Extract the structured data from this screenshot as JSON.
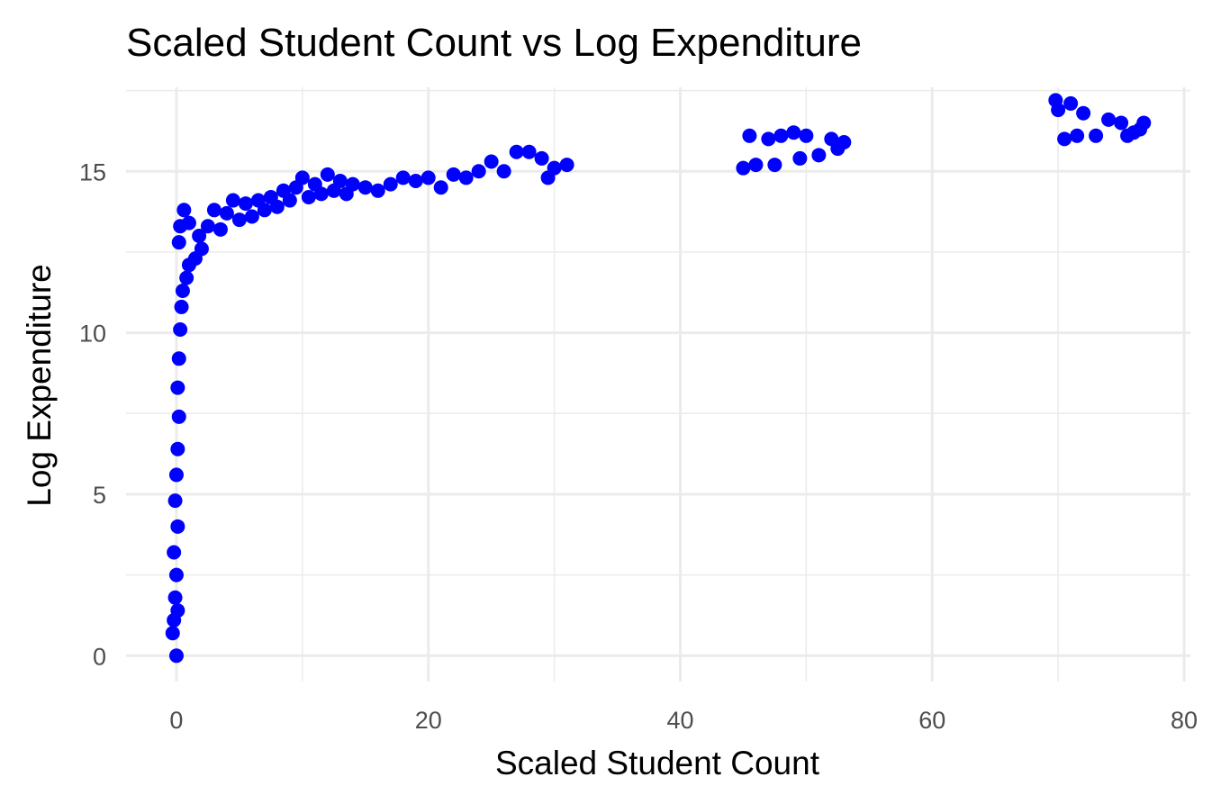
{
  "chart_data": {
    "type": "scatter",
    "title": "Scaled Student Count vs Log Expenditure",
    "xlabel": "Scaled Student Count",
    "ylabel": "Log Expenditure",
    "xlim": [
      -4,
      80.5
    ],
    "ylim": [
      -0.8,
      17.6
    ],
    "xticks": [
      0,
      20,
      40,
      60,
      80
    ],
    "yticks": [
      0,
      5,
      10,
      15
    ],
    "grid": true,
    "point_color": "#0000ff",
    "series": [
      {
        "points": [
          [
            0.0,
            0.0
          ],
          [
            -0.3,
            0.7
          ],
          [
            -0.2,
            1.1
          ],
          [
            0.1,
            1.4
          ],
          [
            -0.1,
            1.8
          ],
          [
            0.0,
            2.5
          ],
          [
            -0.2,
            3.2
          ],
          [
            0.1,
            4.0
          ],
          [
            -0.1,
            4.8
          ],
          [
            0.0,
            5.6
          ],
          [
            0.1,
            6.4
          ],
          [
            0.2,
            7.4
          ],
          [
            0.1,
            8.3
          ],
          [
            0.2,
            9.2
          ],
          [
            0.3,
            10.1
          ],
          [
            0.4,
            10.8
          ],
          [
            0.5,
            11.3
          ],
          [
            0.8,
            11.7
          ],
          [
            1.0,
            12.1
          ],
          [
            1.5,
            12.3
          ],
          [
            2.0,
            12.6
          ],
          [
            0.2,
            12.8
          ],
          [
            0.3,
            13.3
          ],
          [
            0.6,
            13.8
          ],
          [
            1.0,
            13.4
          ],
          [
            1.8,
            13.0
          ],
          [
            2.5,
            13.3
          ],
          [
            3.0,
            13.8
          ],
          [
            3.5,
            13.2
          ],
          [
            4.0,
            13.7
          ],
          [
            4.5,
            14.1
          ],
          [
            5.0,
            13.5
          ],
          [
            5.5,
            14.0
          ],
          [
            6.0,
            13.6
          ],
          [
            6.5,
            14.1
          ],
          [
            7.0,
            13.8
          ],
          [
            7.5,
            14.2
          ],
          [
            8.0,
            13.9
          ],
          [
            8.5,
            14.4
          ],
          [
            9.0,
            14.1
          ],
          [
            9.5,
            14.5
          ],
          [
            10.0,
            14.8
          ],
          [
            10.5,
            14.2
          ],
          [
            11.0,
            14.6
          ],
          [
            11.5,
            14.3
          ],
          [
            12.0,
            14.9
          ],
          [
            12.5,
            14.4
          ],
          [
            13.0,
            14.7
          ],
          [
            13.5,
            14.3
          ],
          [
            14.0,
            14.6
          ],
          [
            15.0,
            14.5
          ],
          [
            16.0,
            14.4
          ],
          [
            17.0,
            14.6
          ],
          [
            18.0,
            14.8
          ],
          [
            19.0,
            14.7
          ],
          [
            20.0,
            14.8
          ],
          [
            21.0,
            14.5
          ],
          [
            22.0,
            14.9
          ],
          [
            23.0,
            14.8
          ],
          [
            24.0,
            15.0
          ],
          [
            25.0,
            15.3
          ],
          [
            26.0,
            15.0
          ],
          [
            27.0,
            15.6
          ],
          [
            28.0,
            15.6
          ],
          [
            29.0,
            15.4
          ],
          [
            29.5,
            14.8
          ],
          [
            30.0,
            15.1
          ],
          [
            31.0,
            15.2
          ],
          [
            45.0,
            15.1
          ],
          [
            45.5,
            16.1
          ],
          [
            46.0,
            15.2
          ],
          [
            47.0,
            16.0
          ],
          [
            47.5,
            15.2
          ],
          [
            48.0,
            16.1
          ],
          [
            49.0,
            16.2
          ],
          [
            49.5,
            15.4
          ],
          [
            50.0,
            16.1
          ],
          [
            51.0,
            15.5
          ],
          [
            52.0,
            16.0
          ],
          [
            52.5,
            15.7
          ],
          [
            53.0,
            15.9
          ],
          [
            69.8,
            17.2
          ],
          [
            70.0,
            16.9
          ],
          [
            70.5,
            16.0
          ],
          [
            71.0,
            17.1
          ],
          [
            71.5,
            16.1
          ],
          [
            72.0,
            16.8
          ],
          [
            73.0,
            16.1
          ],
          [
            74.0,
            16.6
          ],
          [
            75.0,
            16.5
          ],
          [
            75.5,
            16.1
          ],
          [
            76.0,
            16.2
          ],
          [
            76.5,
            16.3
          ],
          [
            76.8,
            16.5
          ]
        ]
      }
    ]
  }
}
